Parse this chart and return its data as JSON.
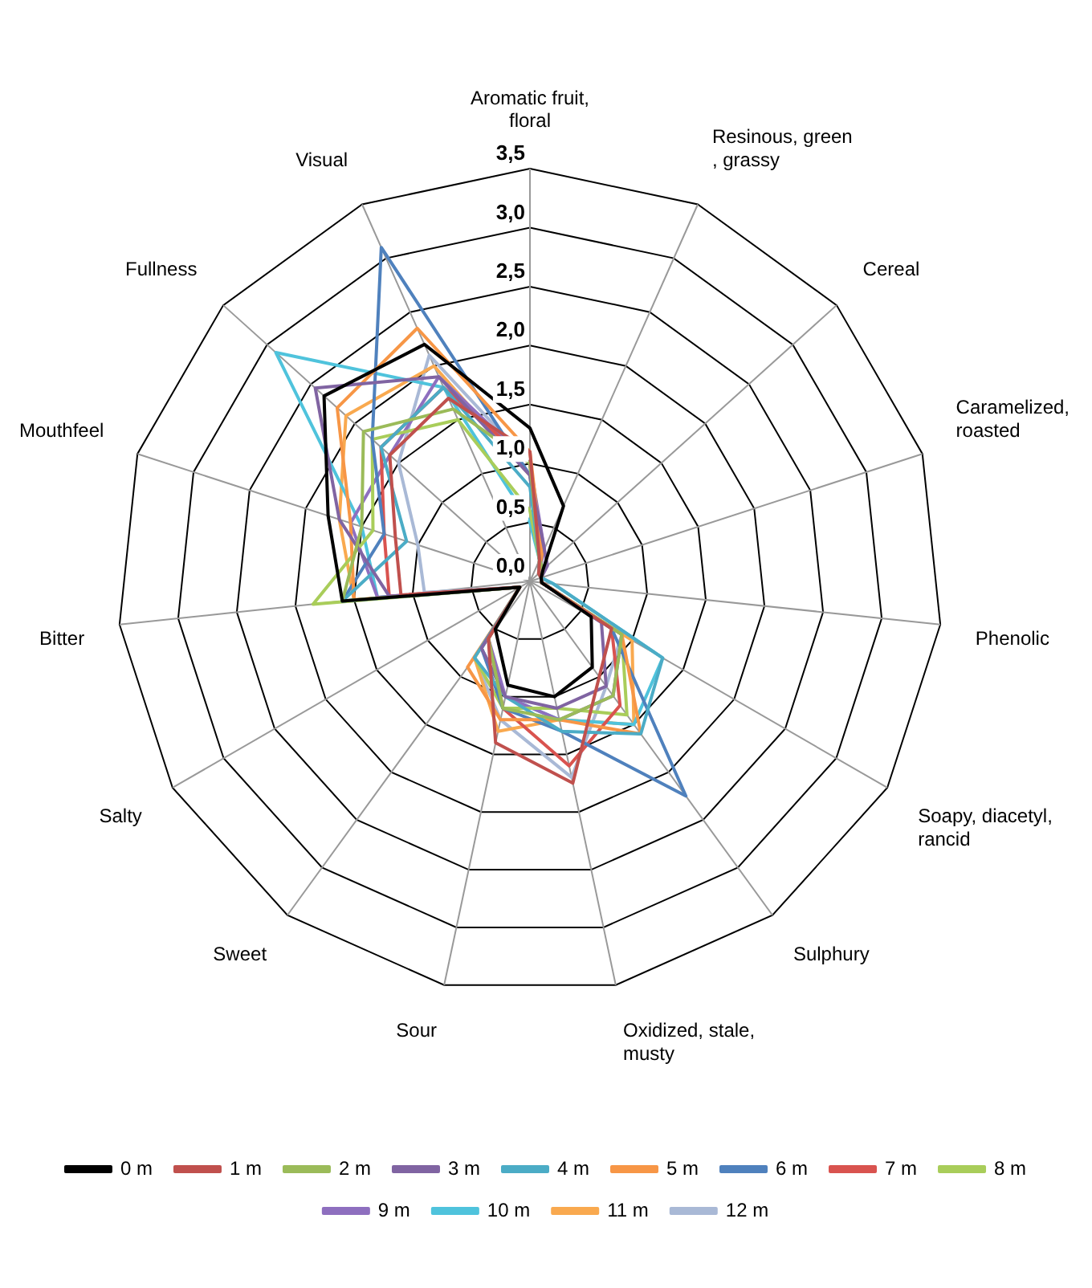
{
  "chart_data": {
    "type": "radar",
    "categories": [
      "Aromatic fruit, floral",
      "Resinous, green , grassy",
      "Cereal",
      "Caramelized, roasted",
      "Phenolic",
      "Soapy, diacetyl, rancid",
      "Sulphury",
      "Oxidized, stale, musty",
      "Sour",
      "Sweet",
      "Salty",
      "Bitter",
      "Mouthfeel",
      "Fullness",
      "Visual"
    ],
    "ylim": [
      0,
      3.5
    ],
    "yticks": [
      {
        "value": 0,
        "label": "0,0"
      },
      {
        "value": 0.5,
        "label": "0,5"
      },
      {
        "value": 1,
        "label": "1,0"
      },
      {
        "value": 1.5,
        "label": "1,5"
      },
      {
        "value": 2,
        "label": "2,0"
      },
      {
        "value": 2.5,
        "label": "2,5"
      },
      {
        "value": 3,
        "label": "3,0"
      },
      {
        "value": 3.5,
        "label": "3,5"
      }
    ],
    "grid": true,
    "legend": "bottom",
    "marker": "none",
    "series": [
      {
        "name": "0 m",
        "color": "#000000",
        "values": [
          1.3,
          0.7,
          0.15,
          0.1,
          0.1,
          0.6,
          0.9,
          1.0,
          0.9,
          0.5,
          0.1,
          1.6,
          1.8,
          2.35,
          2.2
        ]
      },
      {
        "name": "1 m",
        "color": "#c0504d",
        "values": [
          1.1,
          0.2,
          0.1,
          0.1,
          0.1,
          0.8,
          1.0,
          1.75,
          1.4,
          0.6,
          0.1,
          1.1,
          1.2,
          1.6,
          1.7
        ]
      },
      {
        "name": "2 m",
        "color": "#9bbb59",
        "values": [
          1.0,
          0.2,
          0.15,
          0.1,
          0.1,
          0.9,
          1.2,
          1.2,
          1.1,
          0.6,
          0.1,
          1.6,
          1.5,
          1.9,
          1.6
        ]
      },
      {
        "name": "3 m",
        "color": "#8064a2",
        "values": [
          0.9,
          0.3,
          0.2,
          0.1,
          0.1,
          0.7,
          1.1,
          1.1,
          1.0,
          0.7,
          0.1,
          1.2,
          1.7,
          2.45,
          1.9
        ]
      },
      {
        "name": "4 m",
        "color": "#4bacc6",
        "values": [
          0.8,
          0.2,
          0.1,
          0.1,
          0.2,
          1.3,
          1.6,
          1.3,
          1.0,
          0.8,
          0.1,
          1.6,
          1.1,
          1.7,
          1.8
        ]
      },
      {
        "name": "5 m",
        "color": "#f79646",
        "values": [
          1.1,
          0.25,
          0.1,
          0.1,
          0.1,
          0.9,
          1.6,
          1.2,
          1.2,
          0.9,
          0.1,
          1.5,
          1.6,
          2.2,
          2.35
        ]
      },
      {
        "name": "6 m",
        "color": "#4f81bd",
        "values": [
          0.9,
          0.2,
          0.15,
          0.1,
          0.1,
          0.8,
          2.25,
          1.3,
          1.1,
          0.7,
          0.1,
          1.6,
          1.3,
          1.8,
          3.1
        ]
      },
      {
        "name": "7 m",
        "color": "#d9534f",
        "values": [
          1.0,
          0.2,
          0.1,
          0.1,
          0.1,
          0.8,
          1.3,
          1.6,
          1.1,
          0.6,
          0.1,
          1.2,
          1.3,
          1.7,
          1.8
        ]
      },
      {
        "name": "8 m",
        "color": "#a9cd5a",
        "values": [
          0.6,
          0.2,
          0.1,
          0.1,
          0.1,
          0.9,
          1.4,
          1.1,
          1.1,
          0.8,
          0.1,
          1.85,
          1.4,
          1.8,
          1.5
        ]
      },
      {
        "name": "9 m",
        "color": "#8e6fbf",
        "values": [
          1.0,
          0.3,
          0.1,
          0.1,
          0.1,
          0.9,
          1.2,
          1.2,
          1.0,
          0.6,
          0.1,
          1.3,
          1.6,
          1.6,
          1.9
        ]
      },
      {
        "name": "10 m",
        "color": "#4fc3dc",
        "values": [
          0.5,
          0.2,
          0.1,
          0.1,
          0.2,
          1.3,
          1.5,
          1.2,
          1.0,
          0.7,
          0.1,
          1.3,
          1.5,
          2.9,
          1.8
        ]
      },
      {
        "name": "11 m",
        "color": "#f9a94f",
        "values": [
          0.9,
          0.2,
          0.1,
          0.1,
          0.1,
          1.0,
          1.5,
          1.2,
          1.3,
          0.8,
          0.1,
          1.5,
          1.7,
          2.1,
          2.0
        ]
      },
      {
        "name": "12 m",
        "color": "#a9b9d6",
        "values": [
          1.0,
          0.2,
          0.1,
          0.1,
          0.1,
          0.9,
          1.1,
          1.7,
          1.2,
          0.8,
          0.1,
          0.9,
          1.0,
          1.5,
          2.1
        ]
      }
    ]
  }
}
